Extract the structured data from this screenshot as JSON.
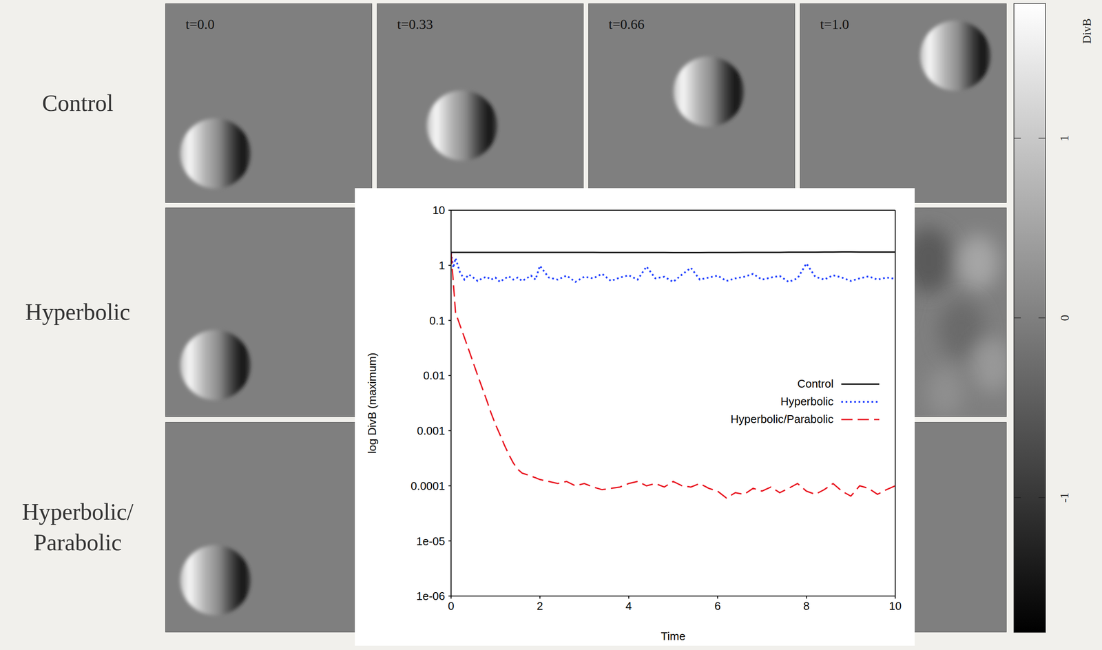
{
  "chart_data": {
    "type": "line",
    "x_label": "Time",
    "y_label": "log DivB (maximum)",
    "x": [
      0,
      0.05,
      0.1,
      0.2,
      0.3,
      0.4,
      0.5,
      0.6,
      0.7,
      0.8,
      0.9,
      1.0,
      1.1,
      1.2,
      1.3,
      1.4,
      1.5,
      1.6,
      1.7,
      1.8,
      1.9,
      2.0,
      2.2,
      2.4,
      2.6,
      2.8,
      3.0,
      3.2,
      3.4,
      3.6,
      3.8,
      4.0,
      4.2,
      4.4,
      4.6,
      4.8,
      5.0,
      5.2,
      5.4,
      5.6,
      5.8,
      6.0,
      6.2,
      6.4,
      6.6,
      6.8,
      7.0,
      7.2,
      7.4,
      7.6,
      7.8,
      8.0,
      8.2,
      8.4,
      8.6,
      8.8,
      9.0,
      9.2,
      9.4,
      9.6,
      9.8,
      10.0
    ],
    "series": [
      {
        "name": "Control",
        "color": "#000000",
        "line_style": "solid",
        "values": [
          1.72,
          1.72,
          1.72,
          1.72,
          1.72,
          1.72,
          1.72,
          1.72,
          1.72,
          1.72,
          1.72,
          1.72,
          1.72,
          1.72,
          1.72,
          1.72,
          1.72,
          1.72,
          1.72,
          1.72,
          1.72,
          1.72,
          1.72,
          1.72,
          1.72,
          1.72,
          1.72,
          1.72,
          1.71,
          1.71,
          1.71,
          1.71,
          1.71,
          1.71,
          1.71,
          1.71,
          1.7,
          1.7,
          1.7,
          1.7,
          1.71,
          1.71,
          1.71,
          1.71,
          1.72,
          1.72,
          1.72,
          1.72,
          1.72,
          1.73,
          1.73,
          1.73,
          1.73,
          1.74,
          1.74,
          1.75,
          1.75,
          1.74,
          1.74,
          1.74,
          1.74,
          1.74
        ]
      },
      {
        "name": "Hyperbolic",
        "color": "#1f3fff",
        "line_style": "dotted",
        "values": [
          1.7,
          0.9,
          1.35,
          0.75,
          0.55,
          0.68,
          0.6,
          0.52,
          0.58,
          0.62,
          0.55,
          0.6,
          0.5,
          0.57,
          0.63,
          0.55,
          0.6,
          0.52,
          0.58,
          0.65,
          0.55,
          0.98,
          0.6,
          0.55,
          0.65,
          0.5,
          0.62,
          0.58,
          0.7,
          0.52,
          0.6,
          0.66,
          0.55,
          0.95,
          0.58,
          0.62,
          0.5,
          0.68,
          0.9,
          0.55,
          0.6,
          0.65,
          0.52,
          0.58,
          0.62,
          0.7,
          0.55,
          0.6,
          0.64,
          0.5,
          0.58,
          1.08,
          0.62,
          0.55,
          0.66,
          0.6,
          0.52,
          0.58,
          0.63,
          0.55,
          0.6,
          0.57
        ]
      },
      {
        "name": "Hyperbolic/Parabolic",
        "color": "#e8101c",
        "line_style": "dashed",
        "values": [
          1.7,
          0.5,
          0.14,
          0.082,
          0.049,
          0.029,
          0.017,
          0.01,
          0.006,
          0.0036,
          0.0021,
          0.0013,
          0.00085,
          0.00055,
          0.00037,
          0.00026,
          0.0002,
          0.00017,
          0.00016,
          0.00015,
          0.00014,
          0.00013,
          0.00012,
          0.00011,
          0.00012,
          0.0001,
          0.00011,
          9.5e-05,
          8.5e-05,
          9e-05,
          9.5e-05,
          0.00011,
          0.00012,
          0.0001,
          0.00011,
          9.5e-05,
          0.00012,
          0.0001,
          9.5e-05,
          0.00011,
          9e-05,
          8e-05,
          6e-05,
          7.5e-05,
          7e-05,
          9e-05,
          8e-05,
          9.5e-05,
          7.5e-05,
          9e-05,
          0.00011,
          8e-05,
          7e-05,
          8.5e-05,
          0.00011,
          8e-05,
          6.5e-05,
          0.0001,
          9e-05,
          7e-05,
          8.5e-05,
          0.0001
        ]
      }
    ],
    "xlim": [
      0,
      10
    ],
    "xticks": [
      0,
      2,
      4,
      6,
      8,
      10
    ],
    "ylim": [
      1e-06,
      10
    ],
    "yticks": [
      10,
      1,
      0.1,
      0.01,
      0.001,
      0.0001,
      {
        "value": 1e-05,
        "label": "1e-05"
      },
      {
        "value": 1e-06,
        "label": "1e-06"
      }
    ],
    "log": "y",
    "grid": false,
    "legend": "right"
  },
  "panels": {
    "rows": [
      "Control",
      "Hyperbolic",
      "Hyperbolic/Parabolic"
    ],
    "times": [
      "t=0.0",
      "t=0.33",
      "t=0.66",
      "t=1.0"
    ]
  },
  "colorbar": {
    "label": "DivB",
    "range": [
      -1.75,
      1.75
    ],
    "ticks": [
      1,
      0,
      -1
    ]
  }
}
